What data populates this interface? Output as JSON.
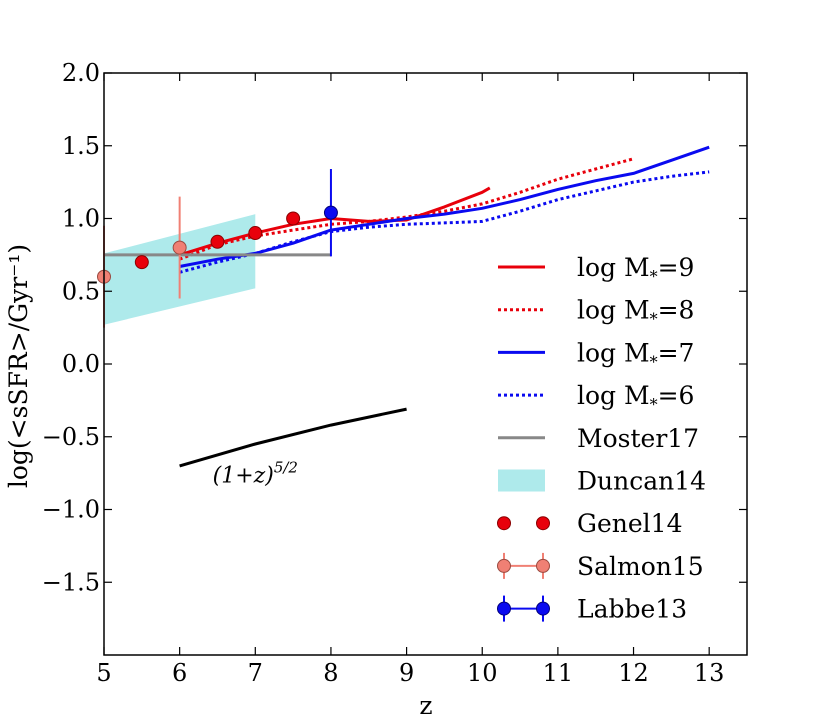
{
  "chart_data": {
    "type": "line",
    "xlabel": "z",
    "ylabel": "log(<sSFR>/Gyr⁻¹)",
    "xlim": [
      5,
      13.5
    ],
    "ylim": [
      -2.0,
      2.0
    ],
    "xticks": [
      5,
      6,
      7,
      8,
      9,
      10,
      11,
      12,
      13
    ],
    "yticks": [
      2.0,
      1.5,
      1.0,
      0.5,
      0.0,
      -0.5,
      -1.0,
      -1.5
    ],
    "ytick_labels": [
      "2.0",
      "1.5",
      "1.0",
      "0.5",
      "0.0",
      "−0.5",
      "−1.0",
      "−1.5"
    ],
    "series": [
      {
        "name": "log M*=9",
        "legend_main": "log M",
        "legend_sub": "*",
        "legend_tail": "=9",
        "color": "#e8000b",
        "style": "solid",
        "x": [
          6.0,
          6.5,
          7.0,
          7.5,
          8.0,
          8.5,
          9.0,
          9.5,
          10.0,
          10.1
        ],
        "y": [
          0.75,
          0.83,
          0.9,
          0.96,
          1.0,
          0.98,
          0.99,
          1.08,
          1.18,
          1.21
        ]
      },
      {
        "name": "log M*=8",
        "legend_main": "log M",
        "legend_sub": "*",
        "legend_tail": "=8",
        "color": "#e8000b",
        "style": "dotted",
        "x": [
          6.0,
          6.5,
          7.0,
          7.5,
          8.0,
          8.5,
          9.0,
          9.5,
          10.0,
          10.5,
          11.0,
          11.5,
          12.0
        ],
        "y": [
          0.72,
          0.82,
          0.88,
          0.92,
          0.96,
          0.98,
          1.01,
          1.05,
          1.1,
          1.18,
          1.27,
          1.34,
          1.41
        ]
      },
      {
        "name": "log M*=7",
        "legend_main": "log M",
        "legend_sub": "*",
        "legend_tail": "=7",
        "color": "#0a0af0",
        "style": "solid",
        "x": [
          6.0,
          6.5,
          7.0,
          7.5,
          8.0,
          8.5,
          9.0,
          9.5,
          10.0,
          10.5,
          11.0,
          11.5,
          12.0,
          12.5,
          13.0
        ],
        "y": [
          0.67,
          0.72,
          0.76,
          0.83,
          0.92,
          0.96,
          1.0,
          1.03,
          1.07,
          1.13,
          1.2,
          1.26,
          1.31,
          1.4,
          1.49
        ]
      },
      {
        "name": "log M*=6",
        "legend_main": "log M",
        "legend_sub": "*",
        "legend_tail": "=6",
        "color": "#0a0af0",
        "style": "dotted",
        "x": [
          6.0,
          6.5,
          7.0,
          7.5,
          8.0,
          8.5,
          9.0,
          9.5,
          10.0,
          10.5,
          11.0,
          11.5,
          12.0,
          12.5,
          13.0
        ],
        "y": [
          0.63,
          0.7,
          0.76,
          0.84,
          0.91,
          0.94,
          0.96,
          0.97,
          0.98,
          1.05,
          1.13,
          1.19,
          1.25,
          1.29,
          1.32
        ]
      },
      {
        "name": "Moster17",
        "legend_main": "Moster17",
        "color": "#888888",
        "style": "solid",
        "x": [
          5.0,
          8.0
        ],
        "y": [
          0.75,
          0.75
        ]
      },
      {
        "name": "(1+z)^5/2",
        "color": "#000000",
        "style": "solid",
        "x": [
          6.0,
          7.0,
          8.0,
          9.0
        ],
        "y": [
          -0.7,
          -0.55,
          -0.42,
          -0.31
        ]
      }
    ],
    "bands": [
      {
        "name": "Duncan14",
        "legend_main": "Duncan14",
        "color": "#aeeaeb",
        "x": [
          5.0,
          7.0
        ],
        "upper": [
          0.76,
          1.03
        ],
        "lower": [
          0.27,
          0.52
        ]
      }
    ],
    "points": [
      {
        "name": "Genel14",
        "legend_main": "Genel14",
        "color": "#e8000b",
        "edge": "#8a0000",
        "x": [
          5.5,
          6.5,
          7.0,
          7.5
        ],
        "y": [
          0.7,
          0.84,
          0.9,
          1.0
        ],
        "yerr": [
          0,
          0,
          0,
          0
        ]
      },
      {
        "name": "Salmon15",
        "legend_main": "Salmon15",
        "color": "#f08074",
        "edge": "#9a4a40",
        "x": [
          5.0,
          6.0
        ],
        "y": [
          0.6,
          0.8
        ],
        "yerr": [
          0.35,
          0.35
        ]
      },
      {
        "name": "Labbe13",
        "legend_main": "Labbe13",
        "color": "#0a0af0",
        "edge": "#00007a",
        "x": [
          8.0
        ],
        "y": [
          1.04
        ],
        "yerr": [
          0.3
        ]
      }
    ],
    "annotations": [
      {
        "name": "slope-annotation",
        "text": "(1+z)",
        "superscript": "5/2",
        "x": 7.0,
        "y": -0.76
      }
    ],
    "legend": {
      "location": "center-right"
    }
  }
}
